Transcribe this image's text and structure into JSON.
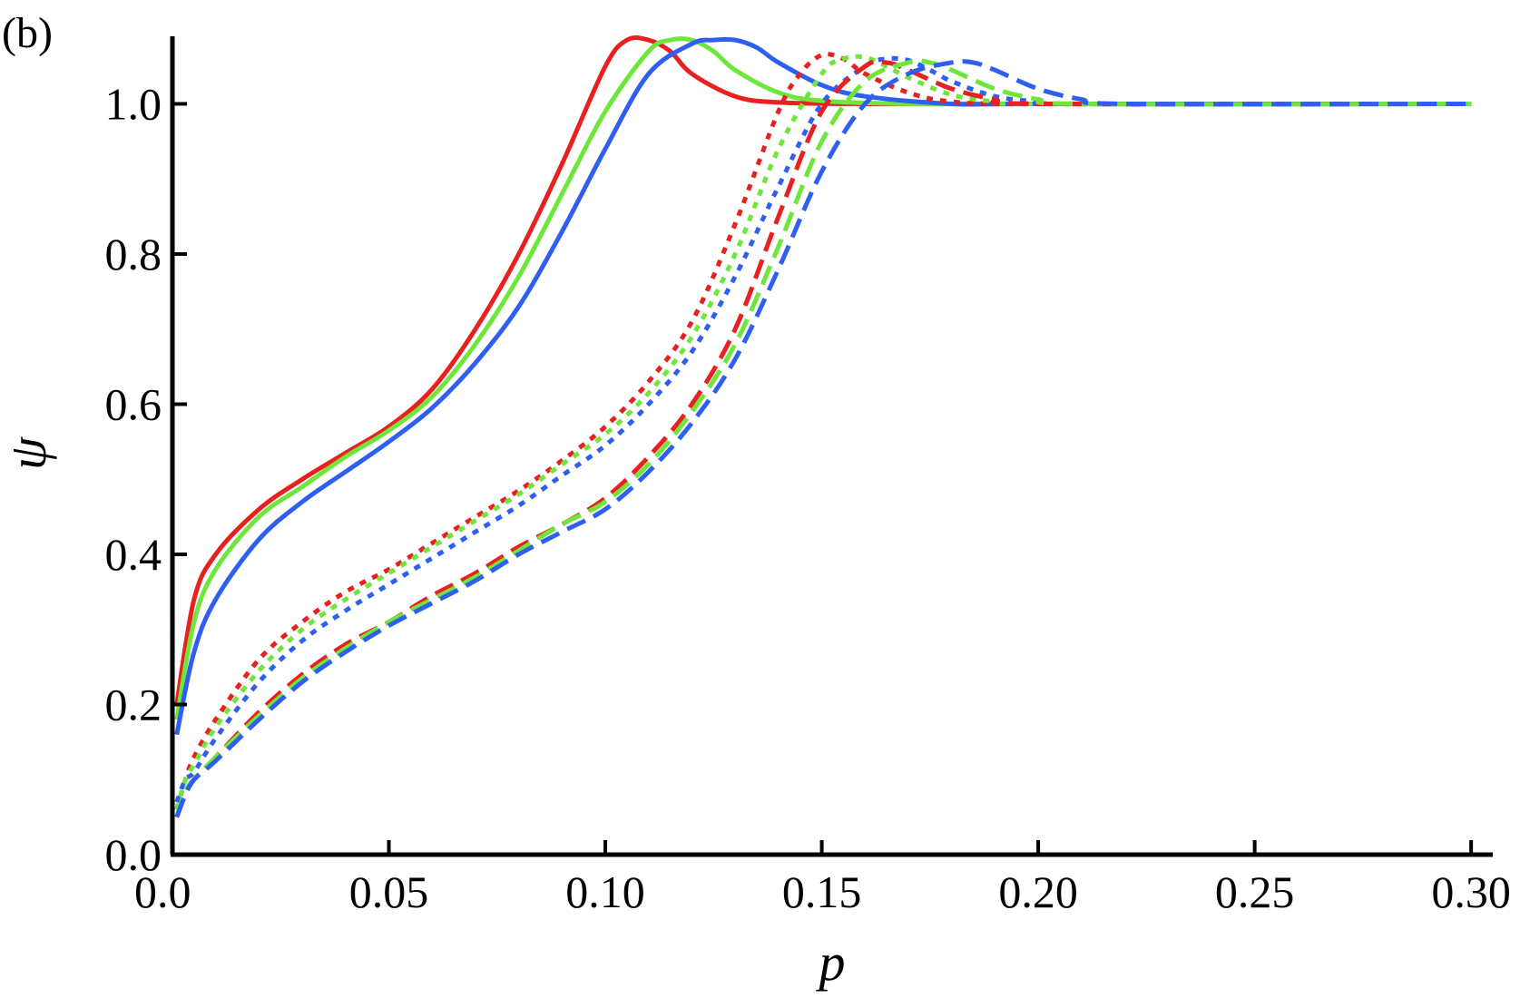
{
  "panel_label": "(b)",
  "chart_data": {
    "type": "line",
    "xlabel": "p",
    "ylabel": "ψ",
    "xlim": [
      0,
      0.305
    ],
    "ylim": [
      0,
      1.09
    ],
    "x_ticks": [
      "0.0",
      "0.05",
      "0.10",
      "0.15",
      "0.20",
      "0.25",
      "0.30"
    ],
    "y_ticks": [
      "0.0",
      "0.2",
      "0.4",
      "0.6",
      "0.8",
      "1.0"
    ],
    "grid": false,
    "legend": "none",
    "series": [
      {
        "color": "#e8201f",
        "style": "solid",
        "x": [
          0.001,
          0.005,
          0.01,
          0.02,
          0.03,
          0.04,
          0.05,
          0.06,
          0.07,
          0.08,
          0.09,
          0.1,
          0.105,
          0.11,
          0.115,
          0.12,
          0.13,
          0.14,
          0.16,
          0.2,
          0.3
        ],
        "y": [
          0.2,
          0.34,
          0.4,
          0.46,
          0.5,
          0.535,
          0.57,
          0.62,
          0.7,
          0.8,
          0.92,
          1.05,
          1.085,
          1.085,
          1.07,
          1.04,
          1.01,
          1.002,
          1.0,
          1.0,
          1.0
        ]
      },
      {
        "color": "#6ee63c",
        "style": "solid",
        "x": [
          0.001,
          0.005,
          0.01,
          0.02,
          0.03,
          0.04,
          0.05,
          0.06,
          0.07,
          0.08,
          0.09,
          0.1,
          0.11,
          0.115,
          0.12,
          0.125,
          0.13,
          0.14,
          0.15,
          0.17,
          0.2,
          0.3
        ],
        "y": [
          0.18,
          0.31,
          0.38,
          0.45,
          0.49,
          0.53,
          0.565,
          0.61,
          0.68,
          0.77,
          0.88,
          0.99,
          1.07,
          1.085,
          1.085,
          1.07,
          1.045,
          1.015,
          1.004,
          1.0,
          1.0,
          1.0
        ]
      },
      {
        "color": "#2f5ff0",
        "style": "solid",
        "x": [
          0.001,
          0.005,
          0.01,
          0.02,
          0.03,
          0.04,
          0.05,
          0.06,
          0.07,
          0.08,
          0.09,
          0.1,
          0.11,
          0.12,
          0.125,
          0.13,
          0.135,
          0.14,
          0.15,
          0.16,
          0.18,
          0.2,
          0.3
        ],
        "y": [
          0.16,
          0.27,
          0.34,
          0.42,
          0.47,
          0.51,
          0.55,
          0.595,
          0.655,
          0.73,
          0.83,
          0.94,
          1.04,
          1.08,
          1.085,
          1.085,
          1.075,
          1.055,
          1.025,
          1.01,
          1.0,
          1.0,
          1.0
        ]
      },
      {
        "color": "#e8201f",
        "style": "dotted",
        "x": [
          0.001,
          0.003,
          0.005,
          0.01,
          0.02,
          0.03,
          0.04,
          0.05,
          0.06,
          0.07,
          0.08,
          0.09,
          0.1,
          0.11,
          0.12,
          0.13,
          0.14,
          0.145,
          0.15,
          0.155,
          0.16,
          0.17,
          0.18,
          0.2,
          0.3
        ],
        "y": [
          0.06,
          0.1,
          0.13,
          0.18,
          0.26,
          0.31,
          0.35,
          0.38,
          0.415,
          0.45,
          0.485,
          0.525,
          0.57,
          0.63,
          0.71,
          0.84,
          0.99,
          1.04,
          1.065,
          1.06,
          1.04,
          1.015,
          1.003,
          1.0,
          1.0
        ]
      },
      {
        "color": "#6ee63c",
        "style": "dotted",
        "x": [
          0.001,
          0.003,
          0.005,
          0.01,
          0.02,
          0.03,
          0.04,
          0.05,
          0.06,
          0.07,
          0.08,
          0.09,
          0.1,
          0.11,
          0.12,
          0.13,
          0.14,
          0.15,
          0.155,
          0.16,
          0.165,
          0.17,
          0.18,
          0.19,
          0.2,
          0.3
        ],
        "y": [
          0.06,
          0.1,
          0.12,
          0.17,
          0.245,
          0.3,
          0.34,
          0.375,
          0.41,
          0.445,
          0.48,
          0.52,
          0.56,
          0.615,
          0.69,
          0.8,
          0.94,
          1.04,
          1.06,
          1.062,
          1.05,
          1.035,
          1.012,
          1.003,
          1.0,
          1.0
        ]
      },
      {
        "color": "#2f5ff0",
        "style": "dotted",
        "x": [
          0.001,
          0.003,
          0.005,
          0.01,
          0.02,
          0.03,
          0.04,
          0.05,
          0.06,
          0.07,
          0.08,
          0.09,
          0.1,
          0.11,
          0.12,
          0.13,
          0.14,
          0.15,
          0.16,
          0.165,
          0.17,
          0.175,
          0.18,
          0.19,
          0.2,
          0.21,
          0.3
        ],
        "y": [
          0.07,
          0.1,
          0.11,
          0.155,
          0.23,
          0.285,
          0.325,
          0.36,
          0.395,
          0.43,
          0.465,
          0.505,
          0.545,
          0.6,
          0.67,
          0.77,
          0.89,
          1.0,
          1.05,
          1.06,
          1.058,
          1.045,
          1.03,
          1.01,
          1.003,
          1.0,
          1.0
        ]
      },
      {
        "color": "#e8201f",
        "style": "dashed",
        "x": [
          0.001,
          0.003,
          0.005,
          0.01,
          0.02,
          0.03,
          0.04,
          0.05,
          0.06,
          0.07,
          0.08,
          0.09,
          0.1,
          0.11,
          0.12,
          0.13,
          0.14,
          0.15,
          0.16,
          0.165,
          0.17,
          0.18,
          0.19,
          0.2,
          0.3
        ],
        "y": [
          0.05,
          0.08,
          0.1,
          0.13,
          0.19,
          0.24,
          0.28,
          0.31,
          0.345,
          0.375,
          0.41,
          0.44,
          0.475,
          0.53,
          0.6,
          0.7,
          0.85,
          0.99,
          1.05,
          1.055,
          1.045,
          1.02,
          1.006,
          1.0,
          1.0
        ]
      },
      {
        "color": "#6ee63c",
        "style": "dashed",
        "x": [
          0.001,
          0.003,
          0.005,
          0.01,
          0.02,
          0.03,
          0.04,
          0.05,
          0.06,
          0.07,
          0.08,
          0.09,
          0.1,
          0.11,
          0.12,
          0.13,
          0.14,
          0.15,
          0.16,
          0.17,
          0.175,
          0.18,
          0.19,
          0.2,
          0.21,
          0.3
        ],
        "y": [
          0.05,
          0.085,
          0.1,
          0.13,
          0.185,
          0.235,
          0.275,
          0.31,
          0.34,
          0.37,
          0.405,
          0.44,
          0.47,
          0.52,
          0.59,
          0.68,
          0.81,
          0.95,
          1.03,
          1.055,
          1.055,
          1.045,
          1.02,
          1.006,
          1.0,
          1.0
        ]
      },
      {
        "color": "#2f5ff0",
        "style": "dashed",
        "x": [
          0.001,
          0.003,
          0.005,
          0.01,
          0.02,
          0.03,
          0.04,
          0.05,
          0.06,
          0.07,
          0.08,
          0.09,
          0.1,
          0.11,
          0.12,
          0.13,
          0.14,
          0.15,
          0.16,
          0.17,
          0.18,
          0.185,
          0.19,
          0.2,
          0.21,
          0.22,
          0.3
        ],
        "y": [
          0.05,
          0.08,
          0.1,
          0.125,
          0.18,
          0.23,
          0.27,
          0.305,
          0.335,
          0.365,
          0.4,
          0.43,
          0.46,
          0.51,
          0.575,
          0.66,
          0.78,
          0.91,
          1.0,
          1.04,
          1.055,
          1.055,
          1.045,
          1.02,
          1.006,
          1.0,
          1.0
        ]
      }
    ]
  }
}
